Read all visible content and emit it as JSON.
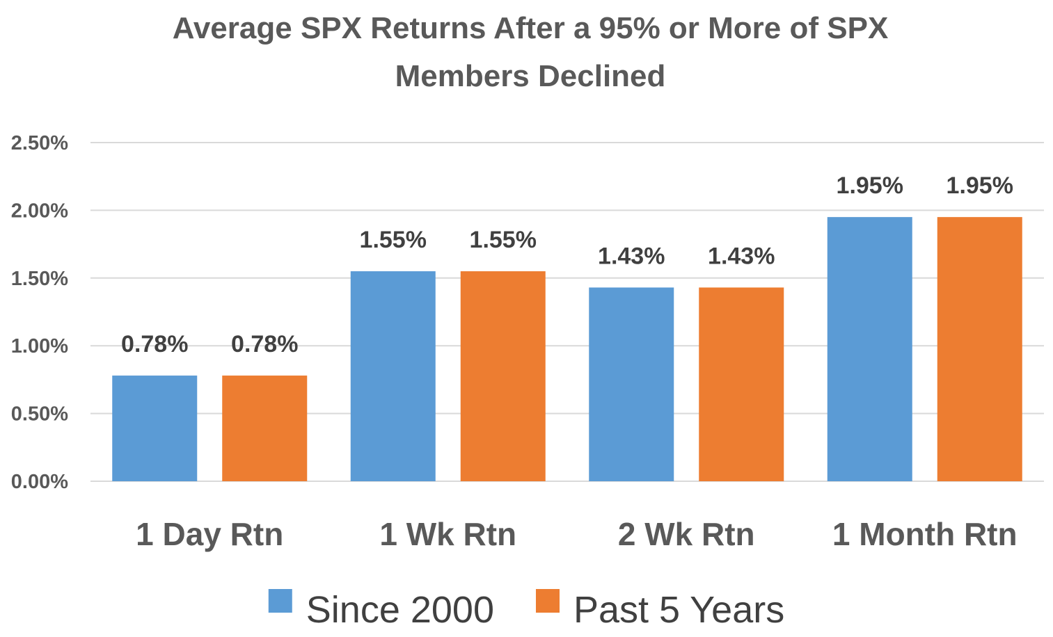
{
  "chart_data": {
    "type": "bar",
    "title": "Average SPX Returns After a 95% or More of SPX Members Declined",
    "title_lines": [
      "Average SPX Returns After a 95% or More of SPX",
      "Members Declined"
    ],
    "categories": [
      "1 Day Rtn",
      "1 Wk Rtn",
      "2 Wk Rtn",
      "1 Month Rtn"
    ],
    "series": [
      {
        "name": "Since 2000",
        "color": "#5b9bd5",
        "values": [
          0.78,
          1.55,
          1.43,
          1.95
        ],
        "labels": [
          "0.78%",
          "1.55%",
          "1.43%",
          "1.95%"
        ]
      },
      {
        "name": "Past 5 Years",
        "color": "#ed7d31",
        "values": [
          0.78,
          1.55,
          1.43,
          1.95
        ],
        "labels": [
          "0.78%",
          "1.55%",
          "1.43%",
          "1.95%"
        ]
      }
    ],
    "ylim": [
      0,
      2.5
    ],
    "yticks": [
      0,
      0.5,
      1.0,
      1.5,
      2.0,
      2.5
    ],
    "ytick_labels": [
      "0.00%",
      "0.50%",
      "1.00%",
      "1.50%",
      "2.00%",
      "2.50%"
    ],
    "xlabel": "",
    "ylabel": "",
    "grid": true,
    "legend_position": "bottom"
  }
}
